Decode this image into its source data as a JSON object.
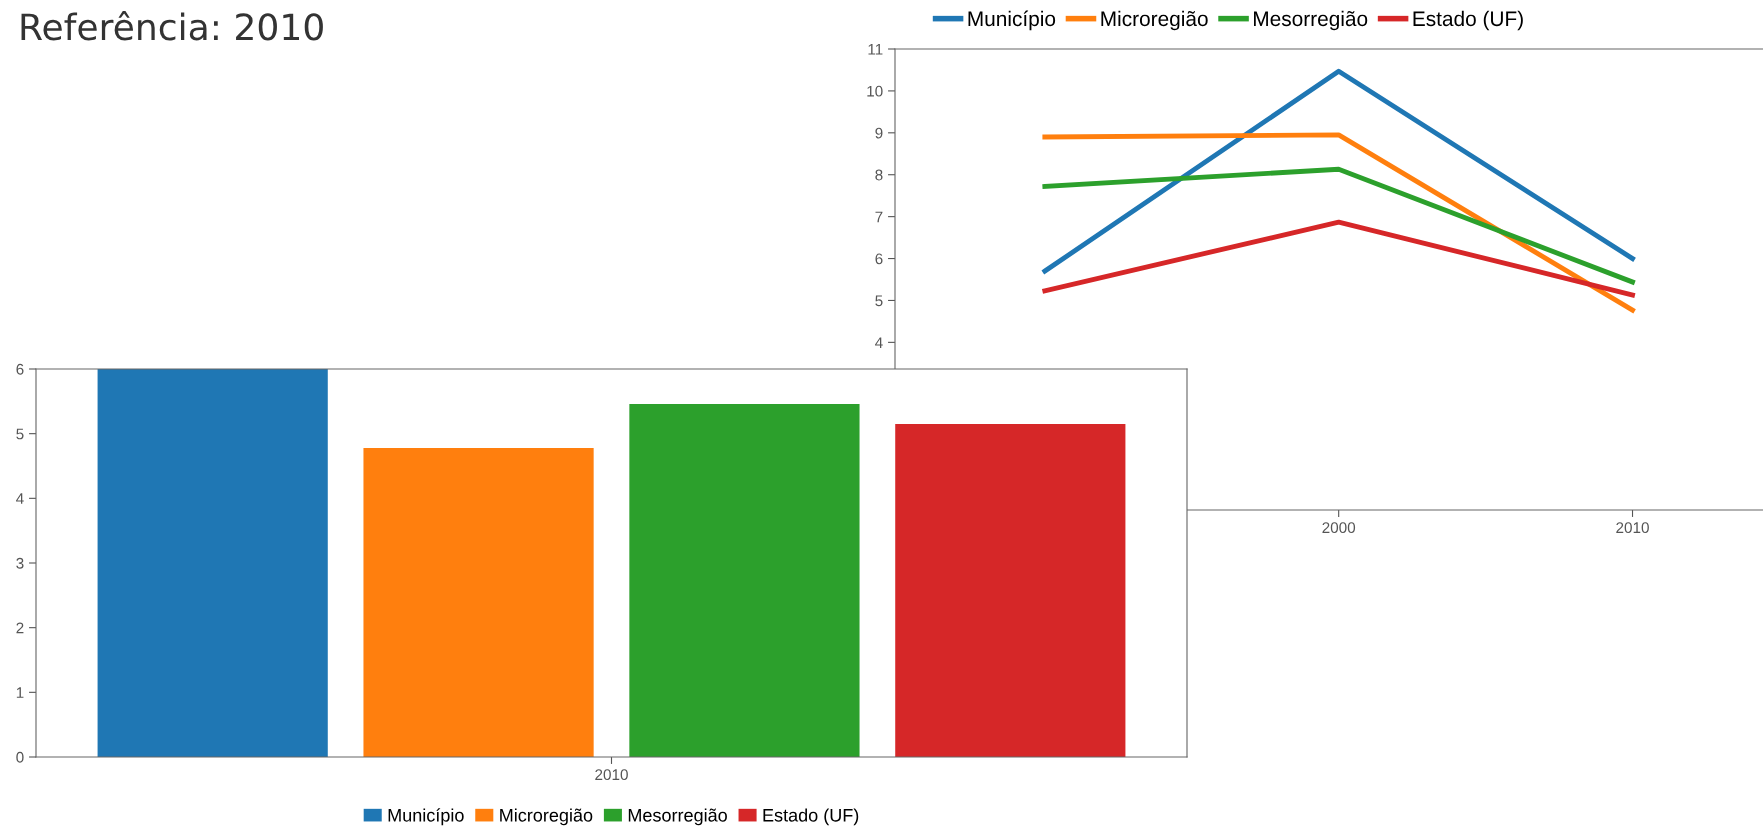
{
  "chart_data": [
    {
      "type": "line",
      "categories": [
        null,
        "2000",
        "2010"
      ],
      "series": [
        {
          "name": "Município",
          "color": "#1f77b4",
          "values": [
            5.7,
            10.47,
            6.0
          ]
        },
        {
          "name": "Microregião",
          "color": "#ff7f0e",
          "values": [
            8.9,
            8.95,
            4.77
          ]
        },
        {
          "name": "Mesorregião",
          "color": "#2ca02c",
          "values": [
            7.72,
            8.13,
            5.44
          ]
        },
        {
          "name": "Estado (UF)",
          "color": "#d62728",
          "values": [
            5.23,
            6.87,
            5.13
          ]
        }
      ],
      "ylim": [
        0,
        11
      ],
      "yticks": [
        4,
        5,
        6,
        7,
        8,
        9,
        10,
        11
      ],
      "legend": "top",
      "grid": false,
      "marker": "none",
      "line_style": "solid"
    },
    {
      "type": "bar",
      "title": "Referência: 2010",
      "categories": [
        "2010"
      ],
      "series": [
        {
          "name": "Município",
          "color": "#1f77b4",
          "values": [
            6.0
          ]
        },
        {
          "name": "Microregião",
          "color": "#ff7f0e",
          "values": [
            4.78
          ]
        },
        {
          "name": "Mesorregião",
          "color": "#2ca02c",
          "values": [
            5.46
          ]
        },
        {
          "name": "Estado (UF)",
          "color": "#d62728",
          "values": [
            5.15
          ]
        }
      ],
      "ylim": [
        0,
        6
      ],
      "yticks": [
        0,
        1,
        2,
        3,
        4,
        5,
        6
      ],
      "legend": "bottom",
      "grid": false
    }
  ]
}
